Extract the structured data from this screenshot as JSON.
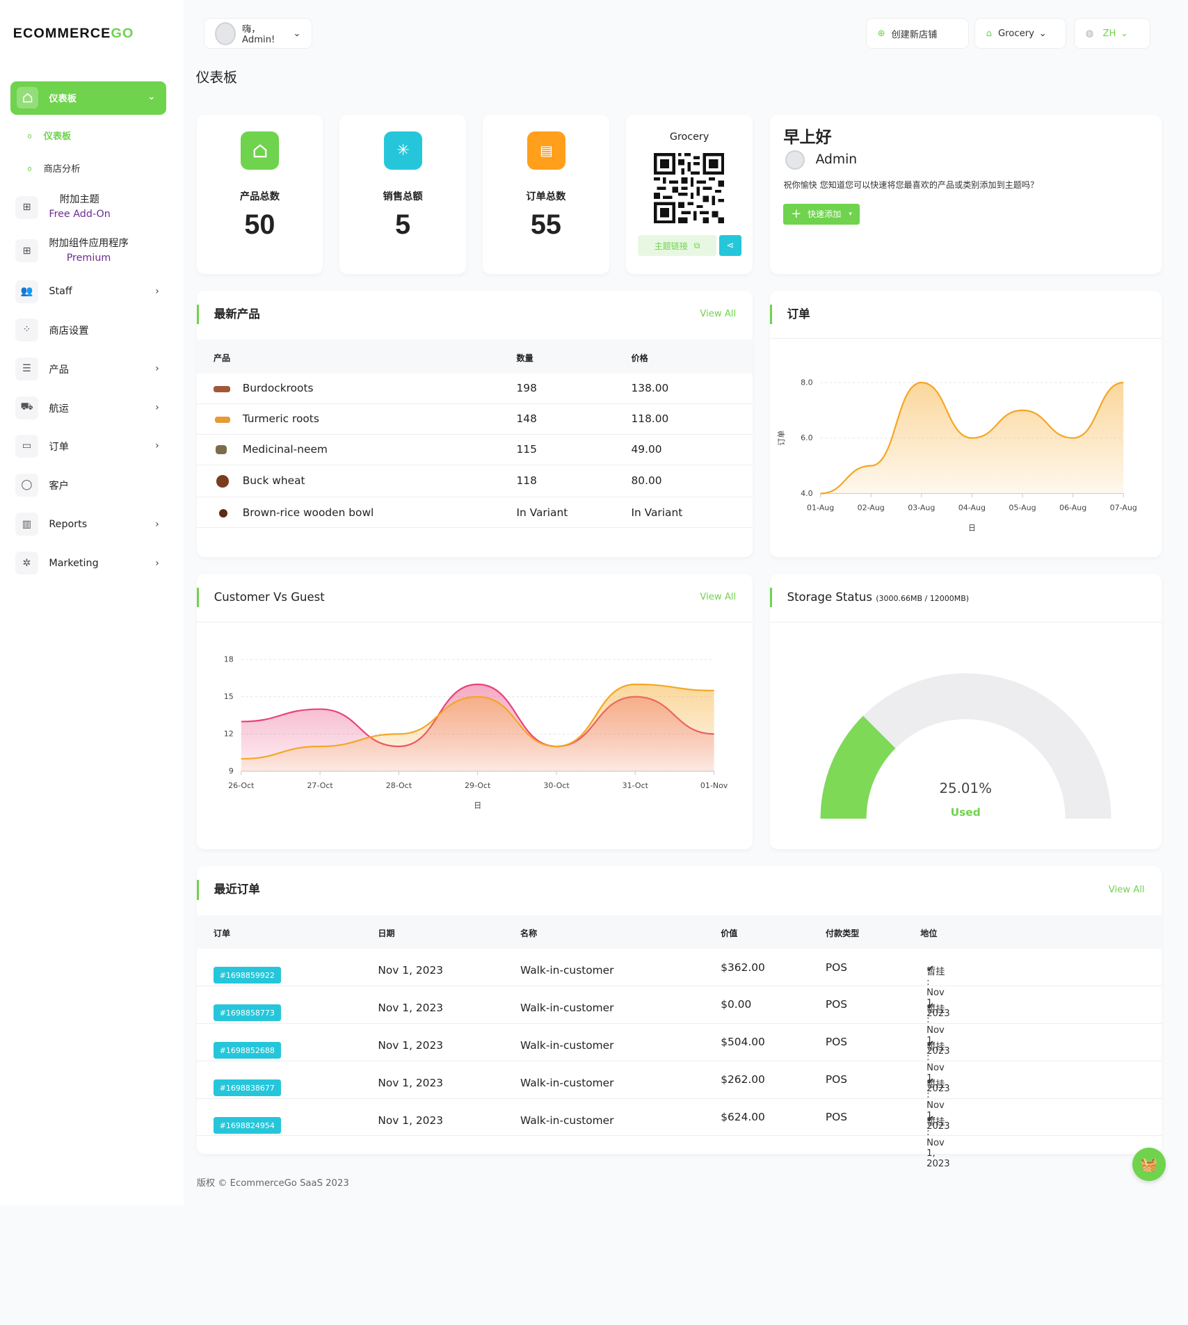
{
  "brand": {
    "logo_main": "ECOMMERCE",
    "logo_accent": "GO"
  },
  "sidebar": {
    "active": {
      "label": "仪表板"
    },
    "sub": [
      {
        "label": "仪表板"
      },
      {
        "label": "商店分析"
      }
    ],
    "items": [
      {
        "line1": "附加主题",
        "line2": "Free Add-On"
      },
      {
        "line1": "附加组件应用程序",
        "line2": "Premium"
      },
      {
        "label": "Staff"
      },
      {
        "label": "商店设置"
      },
      {
        "label": "产品"
      },
      {
        "label": "航运"
      },
      {
        "label": "订单"
      },
      {
        "label": "客户"
      },
      {
        "label": "Reports"
      },
      {
        "label": "Marketing"
      }
    ]
  },
  "topbar": {
    "user": "嗨，Admin!",
    "create_store": "创建新店铺",
    "store": "Grocery",
    "lang": "ZH"
  },
  "page": {
    "title": "仪表板"
  },
  "stats": [
    {
      "label": "产品总数",
      "value": "50",
      "color": "#6fd34d"
    },
    {
      "label": "销售总额",
      "value": "5",
      "color": "#26c6da"
    },
    {
      "label": "订单总数",
      "value": "55",
      "color": "#ff9f1c"
    }
  ],
  "qr": {
    "store": "Grocery",
    "link_label": "主题链接"
  },
  "welcome": {
    "greeting": "早上好",
    "name": "Admin",
    "message": "祝你愉快 您知道您可以快速将您最喜欢的产品或类别添加到主题吗？",
    "button": "快速添加"
  },
  "latest_products": {
    "title": "最新产品",
    "view_all": "View All",
    "headers": {
      "product": "产品",
      "qty": "数量",
      "price": "价格"
    },
    "rows": [
      {
        "name": "Burdockroots",
        "qty": "198",
        "price": "138.00"
      },
      {
        "name": "Turmeric roots",
        "qty": "148",
        "price": "118.00"
      },
      {
        "name": "Medicinal-neem",
        "qty": "115",
        "price": "49.00"
      },
      {
        "name": "Buck wheat",
        "qty": "118",
        "price": "80.00"
      },
      {
        "name": "Brown-rice wooden bowl",
        "qty": "In Variant",
        "price": "In Variant"
      }
    ]
  },
  "orders_chart_card": {
    "title": "订单"
  },
  "customer_card": {
    "title": "Customer Vs Guest",
    "view_all": "View All"
  },
  "storage": {
    "title": "Storage Status",
    "detail": "(3000.66MB / 12000MB)",
    "percent_label": "25.01%",
    "used_label": "Used",
    "fraction": 0.2501
  },
  "recent_orders": {
    "title": "最近订单",
    "view_all": "View All",
    "headers": {
      "order": "订单",
      "date": "日期",
      "name": "名称",
      "value": "价值",
      "payment": "付款类型",
      "status": "地位"
    },
    "rows": [
      {
        "id": "#1698859922",
        "date": "Nov 1, 2023",
        "name": "Walk-in-customer",
        "value": "$362.00",
        "payment": "POS",
        "status": "暂挂 : Nov 1, 2023"
      },
      {
        "id": "#1698858773",
        "date": "Nov 1, 2023",
        "name": "Walk-in-customer",
        "value": "$0.00",
        "payment": "POS",
        "status": "暂挂 : Nov 1, 2023"
      },
      {
        "id": "#1698852688",
        "date": "Nov 1, 2023",
        "name": "Walk-in-customer",
        "value": "$504.00",
        "payment": "POS",
        "status": "暂挂 : Nov 1, 2023"
      },
      {
        "id": "#1698838677",
        "date": "Nov 1, 2023",
        "name": "Walk-in-customer",
        "value": "$262.00",
        "payment": "POS",
        "status": "暂挂 : Nov 1, 2023"
      },
      {
        "id": "#1698824954",
        "date": "Nov 1, 2023",
        "name": "Walk-in-customer",
        "value": "$624.00",
        "payment": "POS",
        "status": "暂挂 : Nov 1, 2023"
      }
    ]
  },
  "footer": {
    "text": "版权 © EcommerceGo SaaS 2023"
  },
  "chart_data": [
    {
      "type": "area",
      "x": [
        "01-Aug",
        "02-Aug",
        "03-Aug",
        "04-Aug",
        "05-Aug",
        "06-Aug",
        "07-Aug"
      ],
      "series": [
        {
          "values": [
            4.0,
            5.0,
            8.0,
            6.0,
            7.0,
            6.0,
            8.0
          ],
          "color": "#f5a623"
        }
      ],
      "xlabel": "日",
      "ylabel": "订单",
      "ylim": [
        4,
        8
      ],
      "yticks": [
        "4.0",
        "6.0",
        "8.0"
      ]
    },
    {
      "type": "area",
      "x": [
        "26-Oct",
        "27-Oct",
        "28-Oct",
        "29-Oct",
        "30-Oct",
        "31-Oct",
        "01-Nov"
      ],
      "series": [
        {
          "values": [
            13,
            14,
            11,
            16,
            11,
            15,
            12
          ],
          "color": "#e8437a"
        },
        {
          "values": [
            10,
            11,
            12,
            15,
            11,
            16,
            15.5
          ],
          "color": "#f5a623"
        }
      ],
      "xlabel": "日",
      "ylim": [
        9,
        18
      ],
      "yticks": [
        "9",
        "12",
        "15",
        "18"
      ]
    }
  ]
}
